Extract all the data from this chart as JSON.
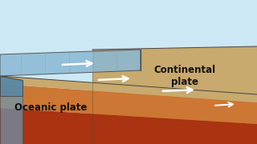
{
  "sky_color": "#cce8f4",
  "tan_color": "#c8a96e",
  "tan_light": "#d4b87a",
  "tan_dark": "#b89858",
  "orange_color": "#cc7733",
  "red_color": "#aa3311",
  "ocean_top_color": "#8ab8d4",
  "ocean_side_color": "#6898b4",
  "ocean_front_color": "#5888a4",
  "box_line_color": "#444444",
  "arrow_color": "#ffffff",
  "text_color": "#111111",
  "text_oceanic": "Oceanic plate",
  "text_continental": "Continental\nplate",
  "label_fontsize": 8.5,
  "figsize": [
    3.2,
    1.8
  ],
  "dpi": 100
}
